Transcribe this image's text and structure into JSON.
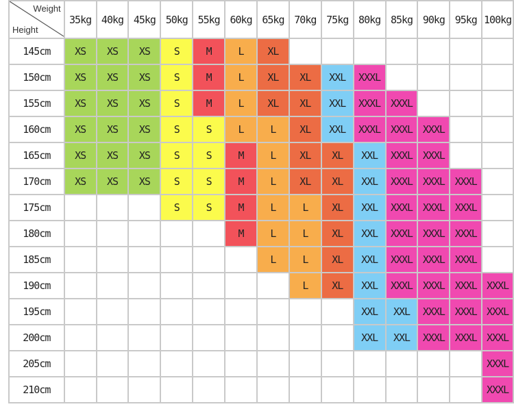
{
  "chart_data": {
    "type": "table",
    "corner": {
      "column_axis_label": "Weight",
      "row_axis_label": "Height"
    },
    "columns": [
      "35kg",
      "40kg",
      "45kg",
      "50kg",
      "55kg",
      "60kg",
      "65kg",
      "70kg",
      "75kg",
      "80kg",
      "85kg",
      "90kg",
      "95kg",
      "100kg"
    ],
    "rows": [
      {
        "height": "145cm",
        "sizes": [
          "XS",
          "XS",
          "XS",
          "S",
          "M",
          "L",
          "XL",
          "",
          "",
          "",
          "",
          "",
          "",
          ""
        ]
      },
      {
        "height": "150cm",
        "sizes": [
          "XS",
          "XS",
          "XS",
          "S",
          "M",
          "L",
          "XL",
          "XL",
          "XXL",
          "XXXL",
          "",
          "",
          "",
          ""
        ]
      },
      {
        "height": "155cm",
        "sizes": [
          "XS",
          "XS",
          "XS",
          "S",
          "M",
          "L",
          "XL",
          "XL",
          "XXL",
          "XXXL",
          "XXXL",
          "",
          "",
          ""
        ]
      },
      {
        "height": "160cm",
        "sizes": [
          "XS",
          "XS",
          "XS",
          "S",
          "S",
          "L",
          "L",
          "XL",
          "XXL",
          "XXXL",
          "XXXL",
          "XXXL",
          "",
          ""
        ]
      },
      {
        "height": "165cm",
        "sizes": [
          "XS",
          "XS",
          "XS",
          "S",
          "S",
          "M",
          "L",
          "XL",
          "XL",
          "XXL",
          "XXXL",
          "XXXL",
          "",
          ""
        ]
      },
      {
        "height": "170cm",
        "sizes": [
          "XS",
          "XS",
          "XS",
          "S",
          "S",
          "M",
          "L",
          "XL",
          "XL",
          "XXL",
          "XXXL",
          "XXXL",
          "XXXL",
          ""
        ]
      },
      {
        "height": "175cm",
        "sizes": [
          "",
          "",
          "",
          "S",
          "S",
          "M",
          "L",
          "L",
          "XL",
          "XXL",
          "XXXL",
          "XXXL",
          "XXXL",
          ""
        ]
      },
      {
        "height": "180cm",
        "sizes": [
          "",
          "",
          "",
          "",
          "",
          "M",
          "L",
          "L",
          "XL",
          "XXL",
          "XXXL",
          "XXXL",
          "XXXL",
          ""
        ]
      },
      {
        "height": "185cm",
        "sizes": [
          "",
          "",
          "",
          "",
          "",
          "",
          "L",
          "L",
          "XL",
          "XXL",
          "XXXL",
          "XXXL",
          "XXXL",
          ""
        ]
      },
      {
        "height": "190cm",
        "sizes": [
          "",
          "",
          "",
          "",
          "",
          "",
          "",
          "L",
          "XL",
          "XXL",
          "XXXL",
          "XXXL",
          "XXXL",
          "XXXL"
        ]
      },
      {
        "height": "195cm",
        "sizes": [
          "",
          "",
          "",
          "",
          "",
          "",
          "",
          "",
          "",
          "XXL",
          "XXL",
          "XXXL",
          "XXXL",
          "XXXL"
        ]
      },
      {
        "height": "200cm",
        "sizes": [
          "",
          "",
          "",
          "",
          "",
          "",
          "",
          "",
          "",
          "XXL",
          "XXL",
          "XXXL",
          "XXXL",
          "XXXL"
        ]
      },
      {
        "height": "205cm",
        "sizes": [
          "",
          "",
          "",
          "",
          "",
          "",
          "",
          "",
          "",
          "",
          "",
          "",
          "",
          "XXXL"
        ]
      },
      {
        "height": "210cm",
        "sizes": [
          "",
          "",
          "",
          "",
          "",
          "",
          "",
          "",
          "",
          "",
          "",
          "",
          "",
          "XXXL"
        ]
      }
    ],
    "size_colors": {
      "XS": "#a8d65a",
      "S": "#fbfb4c",
      "M": "#f2525a",
      "L": "#f8ad4c",
      "XL": "#ec6c44",
      "XXL": "#7fcef5",
      "XXXL": "#f049b0"
    }
  }
}
